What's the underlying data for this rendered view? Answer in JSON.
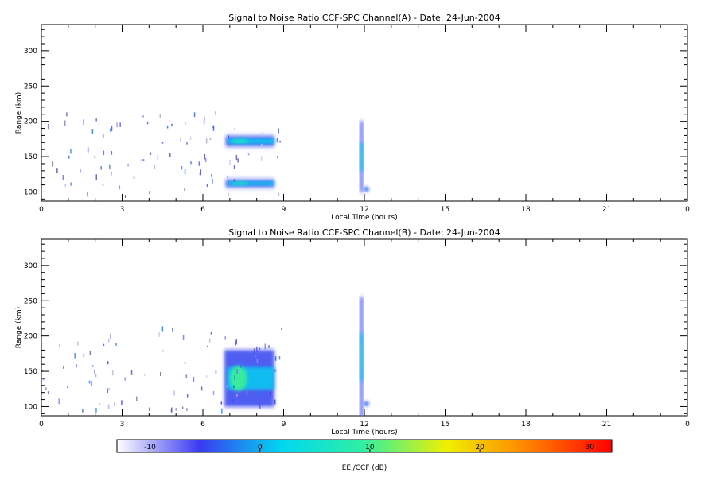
{
  "chart_data": [
    {
      "type": "heatmap",
      "title": "Signal to Noise Ratio CCF-SPC Channel(A) - Date: 24-Jun-2004",
      "xlabel": "Local Time (hours)",
      "ylabel": "Range (km)",
      "xlim": [
        0,
        24
      ],
      "ylim": [
        87,
        337
      ],
      "xticks": [
        "0",
        "3",
        "6",
        "9",
        "12",
        "15",
        "18",
        "21",
        "0"
      ],
      "yticks": [
        100,
        150,
        200,
        250,
        300
      ],
      "features": [
        {
          "t_start": 6.85,
          "t_end": 8.65,
          "range_center": 172,
          "range_halfwidth": 7,
          "snr_db": 2,
          "peak_snr_db": 6
        },
        {
          "t_start": 6.85,
          "t_end": 8.65,
          "range_center": 112,
          "range_halfwidth": 5,
          "snr_db": 2,
          "peak_snr_db": 6
        },
        {
          "t_start": 11.85,
          "t_end": 11.95,
          "range_center": 150,
          "range_halfwidth": 50,
          "snr_db": 1,
          "peak_snr_db": 9
        },
        {
          "t_start": 12.0,
          "t_end": 12.15,
          "range_center": 104,
          "range_halfwidth": 4,
          "snr_db": -2,
          "peak_snr_db": -2
        }
      ]
    },
    {
      "type": "heatmap",
      "title": "Signal to Noise Ratio CCF-SPC Channel(B) - Date: 24-Jun-2004",
      "xlabel": "Local Time (hours)",
      "ylabel": "Range (km)",
      "xlim": [
        0,
        24
      ],
      "ylim": [
        87,
        337
      ],
      "xticks": [
        "0",
        "3",
        "6",
        "9",
        "12",
        "15",
        "18",
        "21",
        "0"
      ],
      "yticks": [
        100,
        150,
        200,
        250,
        300
      ],
      "features": [
        {
          "t_start": 6.8,
          "t_end": 8.65,
          "range_center": 140,
          "range_halfwidth": 40,
          "snr_db": 1,
          "peak_snr_db": 10
        },
        {
          "t_start": 11.85,
          "t_end": 11.95,
          "range_center": 170,
          "range_halfwidth": 85,
          "snr_db": 1,
          "peak_snr_db": 9
        },
        {
          "t_start": 12.0,
          "t_end": 12.15,
          "range_center": 104,
          "range_halfwidth": 4,
          "snr_db": -2,
          "peak_snr_db": -2
        }
      ]
    }
  ],
  "colorbar": {
    "label": "EEJ/CCF (dB)",
    "min": -13,
    "max": 32,
    "ticks": [
      -10,
      0,
      10,
      20,
      30
    ],
    "colors": [
      "#ffffff",
      "#3a3af0",
      "#00d8f0",
      "#30f0a0",
      "#f0f000",
      "#ff8000",
      "#ff0000"
    ]
  }
}
